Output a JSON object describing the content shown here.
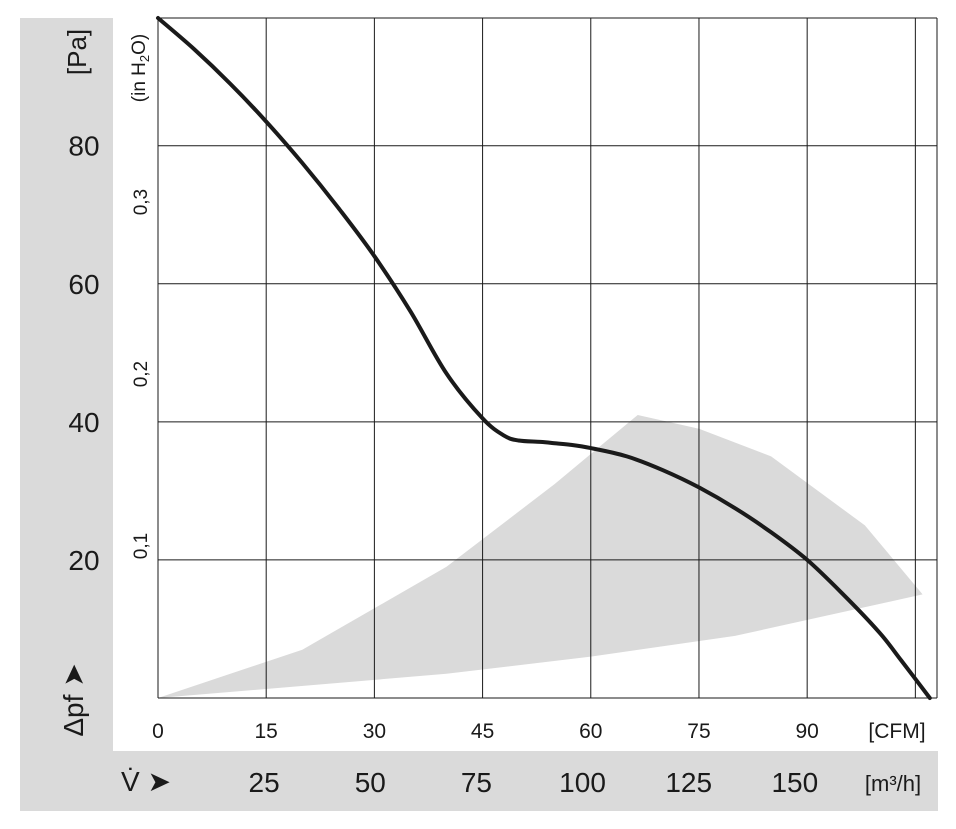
{
  "chart_data": {
    "type": "line",
    "pa_axis": {
      "unit": "[Pa]",
      "ticks": [
        "80",
        "60",
        "40",
        "20"
      ],
      "ylim": [
        0,
        98.5
      ]
    },
    "in_h2o_axis": {
      "unit_prefix": "(in H",
      "unit_sub": "2",
      "unit_suffix": "O)",
      "ticks": [
        "0,3",
        "0,2",
        "0,1"
      ],
      "tick_values": [
        0.3,
        0.2,
        0.1
      ]
    },
    "cfm_axis": {
      "unit": "[CFM]",
      "ticks": [
        "0",
        "15",
        "30",
        "45",
        "60",
        "75",
        "90"
      ],
      "xlim": [
        0,
        108
      ]
    },
    "m3h_axis": {
      "unit": "[m³/h]",
      "ticks": [
        "25",
        "50",
        "75",
        "100",
        "125",
        "150"
      ]
    },
    "ylabel": "Δpf ➤",
    "xlabel": "V̇ ➤",
    "grid": true,
    "series": [
      {
        "x": [
          0,
          5,
          10,
          15,
          20,
          25,
          30,
          35,
          40,
          45,
          48,
          50,
          53,
          55,
          57,
          60,
          65,
          70,
          75,
          80,
          85,
          90,
          95,
          100,
          103,
          107
        ],
        "y": [
          98.5,
          94,
          89,
          83.5,
          77.5,
          71,
          64,
          56,
          47,
          40.5,
          38,
          37.3,
          37.1,
          36.9,
          36.7,
          36.2,
          35,
          33,
          30.5,
          27.5,
          24,
          20,
          15,
          9.5,
          5.5,
          0
        ]
      }
    ],
    "operating_region": {
      "upper_edge": {
        "x": [
          0,
          20,
          40,
          55,
          66.5
        ],
        "y": [
          0,
          7,
          19,
          31,
          41
        ]
      },
      "outer_edge": {
        "x": [
          66.5,
          75,
          85,
          98,
          106
        ],
        "y": [
          41,
          39,
          35,
          25,
          15
        ]
      },
      "lower_edge": {
        "x": [
          106,
          80,
          60,
          40,
          0
        ],
        "y": [
          15,
          9,
          6,
          3.5,
          0
        ]
      },
      "color": "#dadada"
    },
    "colors": {
      "curve": "#1a1a1a",
      "band": "#dadada",
      "region": "#dadada"
    }
  }
}
